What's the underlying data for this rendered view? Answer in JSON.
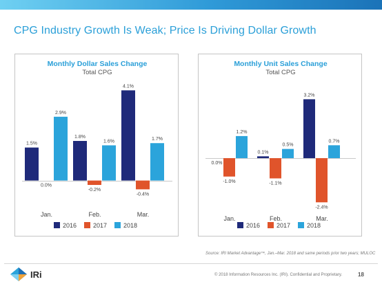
{
  "slide": {
    "title": "CPG Industry Growth Is Weak; Price Is Driving Dollar Growth",
    "source": "Source: IRI Market Advantage™, Jan.–Mar. 2018 and same periods prior two years; MULOC",
    "copyright": "© 2018 Information Resources Inc. (IRI). Confidential and Proprietary.",
    "page_number": "18",
    "logo_text": "IRi"
  },
  "colors": {
    "2016": "#1f2a7a",
    "2017": "#e0542b",
    "2018": "#2ba4db",
    "title_accent": "#2a9fd8"
  },
  "chart_data": [
    {
      "type": "bar",
      "title": "Monthly Dollar Sales Change",
      "subtitle": "Total CPG",
      "categories": [
        "Jan.",
        "Feb.",
        "Mar."
      ],
      "series": [
        {
          "name": "2016",
          "values": [
            1.5,
            1.8,
            4.1
          ],
          "labels": [
            "1.5%",
            "1.8%",
            "4.1%"
          ]
        },
        {
          "name": "2017",
          "values": [
            0.0,
            -0.2,
            -0.4
          ],
          "labels": [
            "0.0%",
            "-0.2%",
            "-0.4%"
          ]
        },
        {
          "name": "2018",
          "values": [
            2.9,
            1.6,
            1.7
          ],
          "labels": [
            "2.9%",
            "1.6%",
            "1.7%"
          ]
        }
      ],
      "ylim": [
        -1.2,
        4.3
      ],
      "grid": false,
      "legend": "bottom"
    },
    {
      "type": "bar",
      "title": "Monthly Unit Sales Change",
      "subtitle": "Total CPG",
      "categories": [
        "Jan.",
        "Feb.",
        "Mar."
      ],
      "series": [
        {
          "name": "2016",
          "values": [
            0.0,
            0.1,
            3.2
          ],
          "labels": [
            "0.0%",
            "0.1%",
            "3.2%"
          ]
        },
        {
          "name": "2017",
          "values": [
            -1.0,
            -1.1,
            -2.4
          ],
          "labels": [
            "-1.0%",
            "-1.1%",
            "-2.4%"
          ]
        },
        {
          "name": "2018",
          "values": [
            1.2,
            0.5,
            0.7
          ],
          "labels": [
            "1.2%",
            "0.5%",
            "0.7%"
          ]
        }
      ],
      "ylim": [
        -2.8,
        3.4
      ],
      "grid": false,
      "legend": "bottom"
    }
  ]
}
